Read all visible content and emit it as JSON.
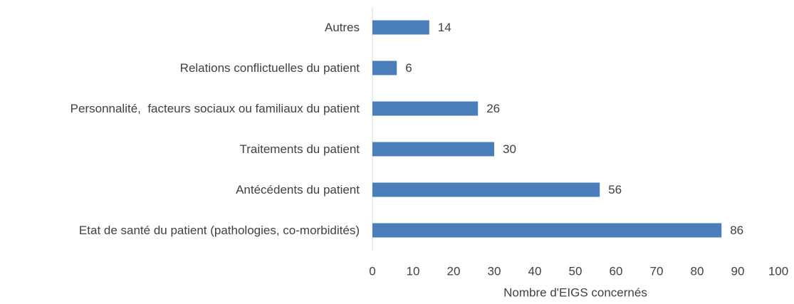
{
  "chart_data": {
    "type": "bar",
    "orientation": "horizontal",
    "categories": [
      "Autres",
      "Relations conflictuelles du patient",
      "Personnalité,  facteurs sociaux ou familiaux du patient",
      "Traitements du patient",
      "Antécédents du patient",
      "Etat de santé du patient (pathologies, co-morbidités)"
    ],
    "values": [
      14,
      6,
      26,
      30,
      56,
      86
    ],
    "color": "#4a7ebb",
    "xlabel": "Nombre d'EIGS concernés",
    "xlim": [
      0,
      100
    ],
    "xticks": [
      0,
      10,
      20,
      30,
      40,
      50,
      60,
      70,
      80,
      90,
      100
    ],
    "grid": false
  }
}
